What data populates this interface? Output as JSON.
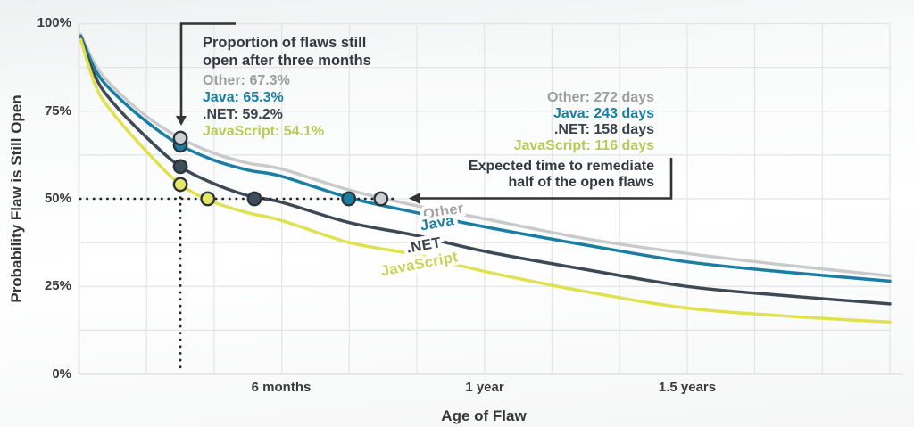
{
  "y_axis": {
    "title": "Probability Flaw is Still Open",
    "ticks": [
      "100%",
      "75%",
      "50%",
      "25%",
      "0%"
    ]
  },
  "x_axis": {
    "title": "Age of Flaw",
    "ticks": [
      "6 months",
      "1 year",
      "1.5 years"
    ]
  },
  "annotation_three_months": {
    "title_lines": [
      "Proportion of flaws still",
      "open after three months"
    ],
    "items": [
      {
        "text": "Other: 67.3%",
        "color": "#9e9e9e"
      },
      {
        "text": "Java: 65.3%",
        "color": "#1a7ea3"
      },
      {
        "text": ".NET: 59.2%",
        "color": "#37424a"
      },
      {
        "text": "JavaScript: 54.1%",
        "color": "#b5cc56"
      }
    ]
  },
  "annotation_half_life": {
    "title_lines": [
      "Expected time to remediate",
      "half of the open flaws"
    ],
    "items": [
      {
        "text": "Other: 272 days",
        "color": "#9e9e9e"
      },
      {
        "text": "Java: 243 days",
        "color": "#1a7ea3"
      },
      {
        "text": ".NET: 158 days",
        "color": "#37424a"
      },
      {
        "text": "JavaScript: 116 days",
        "color": "#b5cc56"
      }
    ]
  },
  "chart_data": {
    "type": "line",
    "title": "",
    "xlabel": "Age of Flaw",
    "ylabel": "Probability Flaw is Still Open",
    "x_unit": "months",
    "xlim": [
      0,
      24
    ],
    "ylim": [
      0,
      100
    ],
    "grid": "on",
    "x_tick_labels": [
      {
        "months": 6,
        "label": "6 months"
      },
      {
        "months": 12,
        "label": "1 year"
      },
      {
        "months": 18,
        "label": "1.5 years"
      }
    ],
    "y_tick_labels": [
      "0%",
      "25%",
      "50%",
      "75%",
      "100%"
    ],
    "x_gridline_step_months": 2,
    "y_gridline_step_pct": 12.5,
    "months": [
      0.05,
      0.5,
      1,
      2,
      3,
      4,
      5,
      6,
      8,
      10,
      12,
      15,
      18,
      21,
      24
    ],
    "series": [
      {
        "name": "Other",
        "line_color": "#c9cacb",
        "label_color": "#a3a3a3",
        "dot_fill": "#ccd0d2",
        "pct_open_after_3_months": 67.3,
        "median_remediation_days": 272,
        "points_pct": [
          97,
          88,
          82,
          73.5,
          67.3,
          63,
          60.2,
          58.5,
          52.5,
          48,
          44.3,
          38.6,
          34.4,
          31,
          28
        ]
      },
      {
        "name": "Java",
        "line_color": "#1a7ea3",
        "label_color": "#1a7ea3",
        "dot_fill": "#1a7ea3",
        "pct_open_after_3_months": 65.3,
        "median_remediation_days": 243,
        "points_pct": [
          96.5,
          86.5,
          80.5,
          72,
          65.3,
          61,
          58.2,
          56.4,
          50.3,
          46,
          42,
          36.8,
          32,
          29,
          26.5
        ]
      },
      {
        "name": ".NET",
        "line_color": "#3d4a55",
        "label_color": "#37424a",
        "dot_fill": "#3c4d5c",
        "pct_open_after_3_months": 59.2,
        "median_remediation_days": 158,
        "points_pct": [
          96,
          84.5,
          77.5,
          67.5,
          59.2,
          54.3,
          50.9,
          49,
          43.2,
          39.5,
          35,
          29.8,
          25,
          22.3,
          20
        ]
      },
      {
        "name": "JavaScript",
        "line_color": "#dfe24e",
        "label_color": "#c7d34f",
        "dot_fill": "#e3e765",
        "pct_open_after_3_months": 54.1,
        "median_remediation_days": 116,
        "points_pct": [
          95.5,
          82,
          74.5,
          63.5,
          54.1,
          49,
          46,
          43.8,
          37.5,
          34,
          29.3,
          23.5,
          18.8,
          16.5,
          14.8
        ]
      }
    ],
    "annotations": [
      "Proportion of flaws still open after three months",
      "Expected time to remediate half of the open flaws"
    ],
    "styling": {
      "grid_color": "#e4e4e4",
      "axis_color": "#c6c6c6",
      "bottom_axis_color": "#bfbfbf",
      "arrow_color": "#333333",
      "dotted_color": "#222222",
      "dot_stroke": "#2b333b"
    }
  }
}
